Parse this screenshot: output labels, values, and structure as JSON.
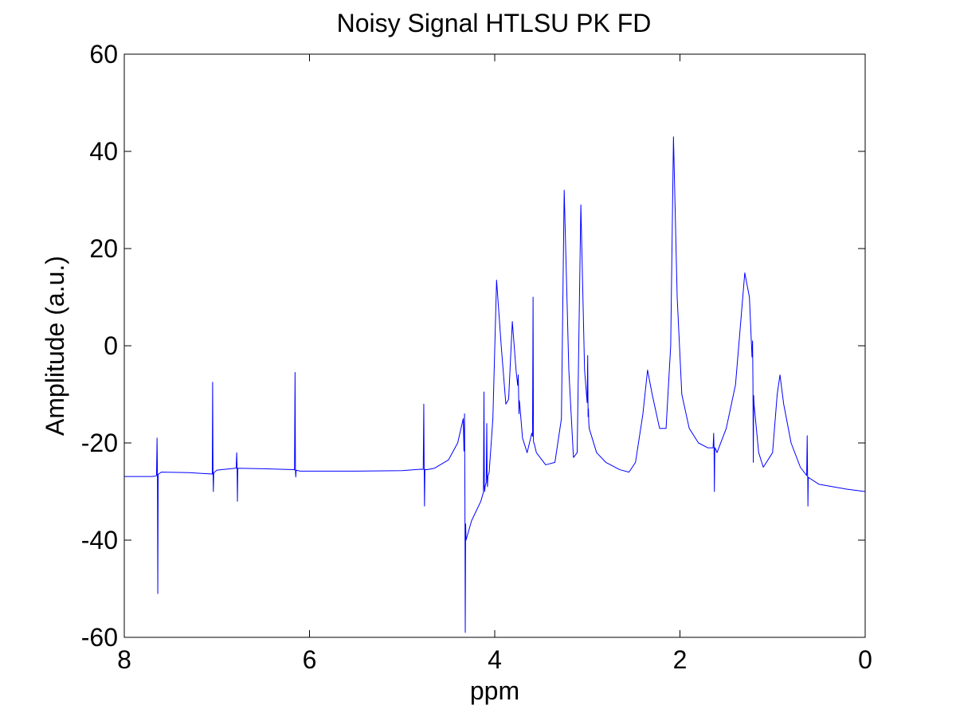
{
  "chart_data": {
    "type": "line",
    "title": "Noisy Signal HTLSU PK FD",
    "xlabel": "ppm",
    "ylabel": "Amplitude (a.u.)",
    "xlim": [
      8,
      0
    ],
    "x_reversed": true,
    "ylim": [
      -60,
      60
    ],
    "xticks": [
      8,
      6,
      4,
      2,
      0
    ],
    "yticks": [
      60,
      40,
      20,
      0,
      -20,
      -40,
      -60
    ],
    "grid": false,
    "legend": "none",
    "line_color": "#0000ff",
    "baseline": [
      [
        8.0,
        -26.9
      ],
      [
        7.7,
        -26.9
      ],
      [
        7.66,
        -26.8
      ],
      [
        7.6,
        -26.0
      ],
      [
        7.3,
        -26.1
      ],
      [
        7.05,
        -26.4
      ],
      [
        7.0,
        -25.6
      ],
      [
        6.8,
        -25.2
      ],
      [
        6.5,
        -25.3
      ],
      [
        6.17,
        -25.5
      ],
      [
        6.1,
        -25.8
      ],
      [
        5.5,
        -25.8
      ],
      [
        5.0,
        -25.7
      ],
      [
        4.8,
        -25.4
      ],
      [
        4.73,
        -25.5
      ],
      [
        4.65,
        -25.2
      ],
      [
        4.5,
        -23.5
      ],
      [
        4.4,
        -20.0
      ],
      [
        4.34,
        -15.0
      ],
      [
        4.31,
        -40.0
      ],
      [
        4.25,
        -36.0
      ],
      [
        4.15,
        -32.0
      ],
      [
        4.06,
        -26.0
      ],
      [
        4.02,
        -15.0
      ],
      [
        3.98,
        13.5
      ],
      [
        3.93,
        0.0
      ],
      [
        3.88,
        -12.0
      ],
      [
        3.85,
        -11.0
      ],
      [
        3.81,
        5.0
      ],
      [
        3.77,
        -5.0
      ],
      [
        3.73,
        -12.0
      ],
      [
        3.7,
        -19.0
      ],
      [
        3.65,
        -22.0
      ],
      [
        3.6,
        -18.0
      ],
      [
        3.55,
        -22.0
      ],
      [
        3.45,
        -24.5
      ],
      [
        3.35,
        -24.0
      ],
      [
        3.28,
        -15.0
      ],
      [
        3.25,
        32.0
      ],
      [
        3.2,
        -5.0
      ],
      [
        3.15,
        -23.0
      ],
      [
        3.11,
        -22.0
      ],
      [
        3.07,
        29.0
      ],
      [
        3.03,
        -5.0
      ],
      [
        2.98,
        -17.0
      ],
      [
        2.9,
        -22.0
      ],
      [
        2.8,
        -24.0
      ],
      [
        2.65,
        -25.5
      ],
      [
        2.55,
        -26.0
      ],
      [
        2.48,
        -24.0
      ],
      [
        2.4,
        -14.0
      ],
      [
        2.35,
        -5.0
      ],
      [
        2.3,
        -10.0
      ],
      [
        2.22,
        -17.0
      ],
      [
        2.15,
        -17.0
      ],
      [
        2.1,
        0.0
      ],
      [
        2.07,
        43.0
      ],
      [
        2.03,
        10.0
      ],
      [
        1.98,
        -10.0
      ],
      [
        1.9,
        -17.0
      ],
      [
        1.8,
        -20.0
      ],
      [
        1.7,
        -21.0
      ],
      [
        1.62,
        -21.0
      ],
      [
        1.6,
        -22.0
      ],
      [
        1.5,
        -17.0
      ],
      [
        1.4,
        -8.0
      ],
      [
        1.3,
        15.0
      ],
      [
        1.25,
        10.0
      ],
      [
        1.2,
        -12.0
      ],
      [
        1.15,
        -22.0
      ],
      [
        1.1,
        -25.0
      ],
      [
        1.0,
        -22.0
      ],
      [
        0.95,
        -10.0
      ],
      [
        0.92,
        -6.0
      ],
      [
        0.88,
        -12.0
      ],
      [
        0.8,
        -20.0
      ],
      [
        0.7,
        -25.0
      ],
      [
        0.62,
        -27.0
      ],
      [
        0.5,
        -28.5
      ],
      [
        0.2,
        -29.5
      ],
      [
        0.0,
        -30.0
      ]
    ],
    "spikes": [
      [
        7.64,
        -19.0,
        -51.0
      ],
      [
        7.04,
        -7.5,
        -30.0
      ],
      [
        6.78,
        -22.0,
        -32.0
      ],
      [
        6.15,
        -5.5,
        -27.0
      ],
      [
        4.76,
        -12.0,
        -33.0
      ],
      [
        4.32,
        -14.0,
        -59.0
      ],
      [
        4.11,
        -9.5,
        -30.0
      ],
      [
        4.08,
        -16.0,
        -29.0
      ],
      [
        3.74,
        -6.0,
        -14.0
      ],
      [
        3.58,
        10.0,
        -20.0
      ],
      [
        2.99,
        -2.0,
        -13.0
      ],
      [
        1.63,
        -18.0,
        -30.0
      ],
      [
        1.21,
        1.0,
        -24.0
      ],
      [
        0.62,
        -18.5,
        -33.0
      ]
    ]
  }
}
